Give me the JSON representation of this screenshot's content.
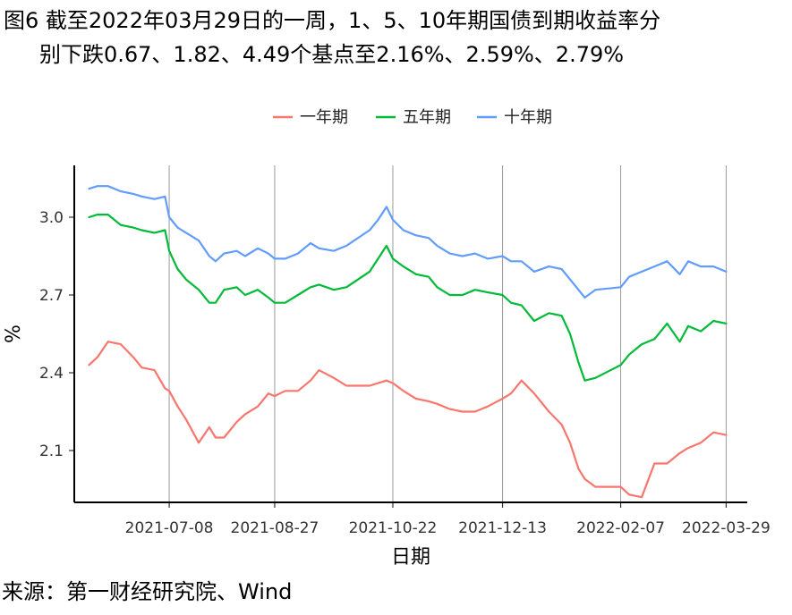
{
  "title": {
    "line1": "图6  截至2022年03月29日的一周，1、5、10年期国债到期收益率分",
    "line2": "别下跌0.67、1.82、4.49个基点至2.16%、2.59%、2.79%"
  },
  "source": "来源：第一财经研究院、Wind",
  "chart_data": {
    "type": "line",
    "xlabel": "日期",
    "ylabel": "%",
    "ylim": [
      1.9,
      3.2
    ],
    "yticks": [
      2.1,
      2.4,
      2.7,
      3.0
    ],
    "ytick_labels": [
      "2.1",
      "2.4",
      "2.7",
      "3.0"
    ],
    "xlim": [
      "2021-05-24",
      "2022-04-08"
    ],
    "xticks": [
      "2021-07-08",
      "2021-08-27",
      "2021-10-22",
      "2021-12-13",
      "2022-02-07",
      "2022-03-29"
    ],
    "grid": "vertical at x ticks",
    "legend_position": "top",
    "x": [
      "2021-05-31",
      "2021-06-04",
      "2021-06-09",
      "2021-06-15",
      "2021-06-21",
      "2021-06-25",
      "2021-07-01",
      "2021-07-06",
      "2021-07-08",
      "2021-07-12",
      "2021-07-16",
      "2021-07-22",
      "2021-07-27",
      "2021-07-30",
      "2021-08-03",
      "2021-08-09",
      "2021-08-13",
      "2021-08-19",
      "2021-08-24",
      "2021-08-27",
      "2021-09-01",
      "2021-09-07",
      "2021-09-13",
      "2021-09-17",
      "2021-09-24",
      "2021-09-30",
      "2021-10-11",
      "2021-10-15",
      "2021-10-19",
      "2021-10-22",
      "2021-10-27",
      "2021-11-02",
      "2021-11-08",
      "2021-11-12",
      "2021-11-18",
      "2021-11-24",
      "2021-11-30",
      "2021-12-06",
      "2021-12-13",
      "2021-12-17",
      "2021-12-22",
      "2021-12-28",
      "2022-01-04",
      "2022-01-10",
      "2022-01-14",
      "2022-01-18",
      "2022-01-21",
      "2022-01-26",
      "2022-02-07",
      "2022-02-11",
      "2022-02-17",
      "2022-02-23",
      "2022-03-01",
      "2022-03-07",
      "2022-03-11",
      "2022-03-17",
      "2022-03-23",
      "2022-03-29"
    ],
    "series": [
      {
        "name": "一年期",
        "color": "#F8766D",
        "values": [
          2.43,
          2.46,
          2.52,
          2.51,
          2.46,
          2.42,
          2.41,
          2.34,
          2.33,
          2.27,
          2.22,
          2.13,
          2.19,
          2.15,
          2.15,
          2.21,
          2.24,
          2.27,
          2.32,
          2.31,
          2.33,
          2.33,
          2.37,
          2.41,
          2.38,
          2.35,
          2.35,
          2.36,
          2.37,
          2.36,
          2.33,
          2.3,
          2.29,
          2.28,
          2.26,
          2.25,
          2.25,
          2.27,
          2.3,
          2.32,
          2.37,
          2.32,
          2.25,
          2.2,
          2.13,
          2.03,
          1.99,
          1.96,
          1.96,
          1.93,
          1.92,
          2.05,
          2.05,
          2.09,
          2.11,
          2.13,
          2.17,
          2.16
        ]
      },
      {
        "name": "五年期",
        "color": "#00BA38",
        "values": [
          3.0,
          3.01,
          3.01,
          2.97,
          2.96,
          2.95,
          2.94,
          2.95,
          2.87,
          2.8,
          2.76,
          2.72,
          2.67,
          2.67,
          2.72,
          2.73,
          2.7,
          2.72,
          2.69,
          2.67,
          2.67,
          2.7,
          2.73,
          2.74,
          2.72,
          2.73,
          2.79,
          2.84,
          2.89,
          2.84,
          2.81,
          2.78,
          2.77,
          2.73,
          2.7,
          2.7,
          2.72,
          2.71,
          2.7,
          2.67,
          2.66,
          2.6,
          2.63,
          2.62,
          2.55,
          2.44,
          2.37,
          2.38,
          2.43,
          2.47,
          2.51,
          2.53,
          2.59,
          2.52,
          2.58,
          2.56,
          2.6,
          2.59
        ]
      },
      {
        "name": "十年期",
        "color": "#619CFF",
        "values": [
          3.11,
          3.12,
          3.12,
          3.1,
          3.09,
          3.08,
          3.07,
          3.08,
          3.0,
          2.96,
          2.94,
          2.91,
          2.85,
          2.83,
          2.86,
          2.87,
          2.85,
          2.88,
          2.86,
          2.84,
          2.84,
          2.86,
          2.9,
          2.88,
          2.87,
          2.89,
          2.95,
          2.99,
          3.04,
          2.99,
          2.95,
          2.93,
          2.92,
          2.89,
          2.86,
          2.85,
          2.86,
          2.84,
          2.85,
          2.83,
          2.83,
          2.79,
          2.81,
          2.8,
          2.76,
          2.72,
          2.69,
          2.72,
          2.73,
          2.77,
          2.79,
          2.81,
          2.83,
          2.78,
          2.83,
          2.81,
          2.81,
          2.79
        ]
      }
    ]
  }
}
